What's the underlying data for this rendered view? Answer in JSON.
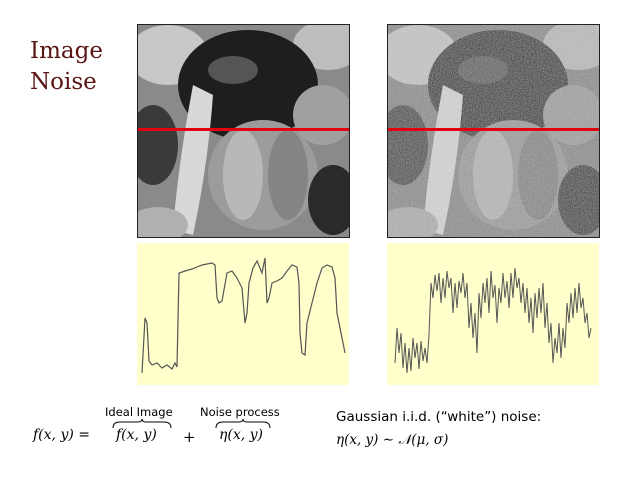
{
  "title": {
    "line1": "Image",
    "line2": "Noise"
  },
  "images": {
    "left": {
      "icon": "clean-peppers-image"
    },
    "right": {
      "icon": "noisy-peppers-image"
    },
    "scanline_color": "#e0000f"
  },
  "plots": {
    "background": "#ffffcc",
    "line_color": "#555555"
  },
  "equation": {
    "lhs": "f(x, y) =",
    "ideal_label": "Ideal Image",
    "ideal_term": "f(x, y)",
    "plus": "+",
    "noise_label": "Noise process",
    "noise_term": "η(x, y)"
  },
  "gaussian": {
    "line1": "Gaussian i.i.d. (“white”) noise:",
    "line2": "η(x, y) ∼ 𝒩(μ, σ)"
  }
}
